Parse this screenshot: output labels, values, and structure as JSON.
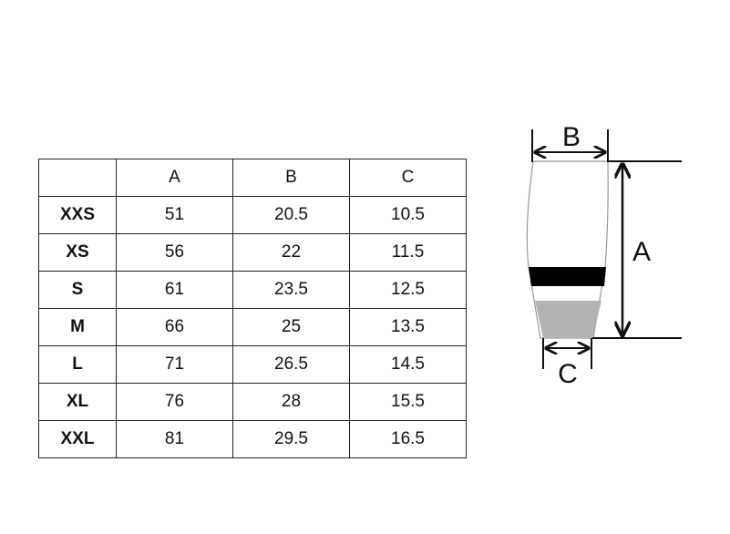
{
  "table": {
    "headers": [
      "",
      "A",
      "B",
      "C"
    ],
    "rows": [
      [
        "XXS",
        "51",
        "20.5",
        "10.5"
      ],
      [
        "XS",
        "56",
        "22",
        "11.5"
      ],
      [
        "S",
        "61",
        "23.5",
        "12.5"
      ],
      [
        "M",
        "66",
        "25",
        "13.5"
      ],
      [
        "L",
        "71",
        "26.5",
        "14.5"
      ],
      [
        "XL",
        "76",
        "28",
        "15.5"
      ],
      [
        "XXL",
        "81",
        "29.5",
        "16.5"
      ]
    ]
  },
  "diagram": {
    "label_a": "A",
    "label_b": "B",
    "label_c": "C",
    "band_color": "#000000",
    "cuff_color": "#b3b3b3"
  }
}
